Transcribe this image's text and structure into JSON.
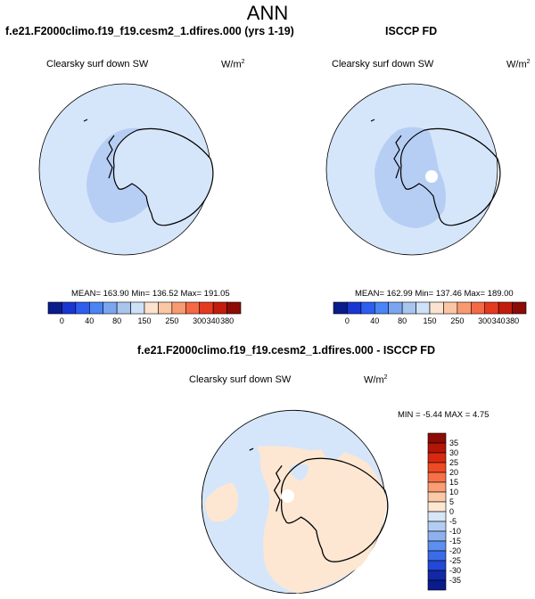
{
  "title": "ANN",
  "panels": [
    {
      "title": "f.e21.F2000climo.f19_f19.cesm2_1.dfires.000 (yrs 1-19)",
      "variable": "Clearsky surf down SW",
      "units_base": "W/m",
      "units_exp": "2",
      "stats": "MEAN= 163.90  Min= 136.52  Max= 191.05"
    },
    {
      "title": "ISCCP FD",
      "variable": "Clearsky surf down SW",
      "units_base": "W/m",
      "units_exp": "2",
      "stats": "MEAN= 162.99  Min= 137.46  Max= 189.00"
    },
    {
      "title": "f.e21.F2000climo.f19_f19.cesm2_1.dfires.000 - ISCCP FD",
      "variable": "Clearsky surf down SW",
      "units_base": "W/m",
      "units_exp": "2",
      "stats": "MIN =  -5.44 MAX =   4.75"
    }
  ],
  "colorbar_horizontal": {
    "labels": [
      "0",
      "40",
      "80",
      "150",
      "250",
      "300",
      "340",
      "380"
    ],
    "colors": [
      "#0a1b8c",
      "#1936d2",
      "#2d5ef0",
      "#4a84f5",
      "#7aa6f0",
      "#a9c5ee",
      "#cfe1f7",
      "#fbe3cf",
      "#fbc6a4",
      "#f89a70",
      "#f46a45",
      "#e63a1e",
      "#c31c0c",
      "#8c0b04"
    ]
  },
  "colorbar_vertical": {
    "labels": [
      "35",
      "30",
      "25",
      "20",
      "15",
      "10",
      "5",
      "0",
      "-5",
      "-10",
      "-15",
      "-20",
      "-25",
      "-30",
      "-35"
    ],
    "colors": [
      "#8c0b04",
      "#b31507",
      "#d92812",
      "#ee4a23",
      "#f67148",
      "#fa9d74",
      "#fcc9a6",
      "#fde7d2",
      "#d6e6f7",
      "#b3cdf2",
      "#8eb1ee",
      "#5d8ff0",
      "#3a6be8",
      "#2347d6",
      "#1228a8",
      "#0a1b8c"
    ]
  },
  "colors": {
    "ocean_model": "#d6e6fa",
    "sea_ice_model": "#b7cef4",
    "ocean_diff": "#d6e6fa",
    "land_diff": "#fde7d2"
  }
}
